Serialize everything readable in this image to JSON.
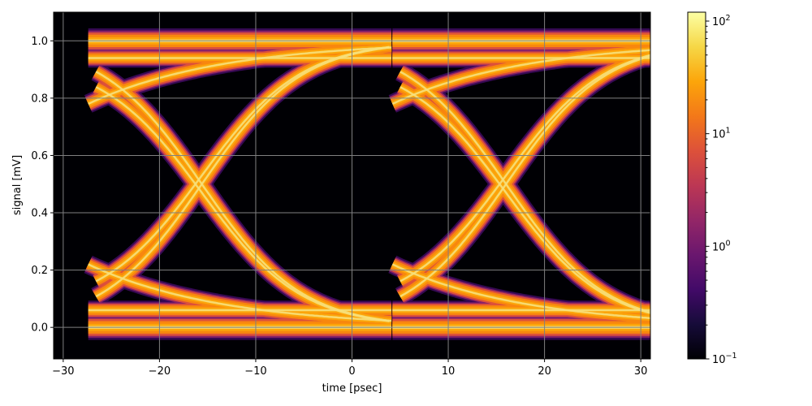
{
  "chart_data": {
    "type": "heatmap",
    "title": "",
    "xlabel": "time [psec]",
    "ylabel": "signal [mV]",
    "xlim": [
      -31,
      31
    ],
    "ylim": [
      -0.11,
      1.1
    ],
    "x_ticks": [
      -30,
      -20,
      -10,
      0,
      10,
      20,
      30
    ],
    "x_tick_labels": [
      "−30",
      "−20",
      "−10",
      "0",
      "10",
      "20",
      "30"
    ],
    "y_ticks": [
      0.0,
      0.2,
      0.4,
      0.6,
      0.8,
      1.0
    ],
    "y_tick_labels": [
      "0.0",
      "0.2",
      "0.4",
      "0.6",
      "0.8",
      "1.0"
    ],
    "grid": true,
    "colormap": "inferno",
    "colorbar": {
      "scale": "log",
      "range": [
        0.1,
        120
      ],
      "ticks": [
        0.1,
        1,
        10,
        100
      ],
      "tick_labels": [
        "10",
        "10",
        "10",
        "10"
      ],
      "tick_exponents": [
        "−1",
        "0",
        "1",
        "2"
      ]
    },
    "eye_pattern": {
      "unit_interval_psec": 31.5,
      "transition_times_psec": [
        -27.4,
        4.2
      ],
      "crossing_points": [
        {
          "x": -15.6,
          "y": 0.5
        },
        {
          "x": 15.6,
          "y": 0.5
        }
      ],
      "low_level": 0.0,
      "high_level": 1.0
    }
  }
}
